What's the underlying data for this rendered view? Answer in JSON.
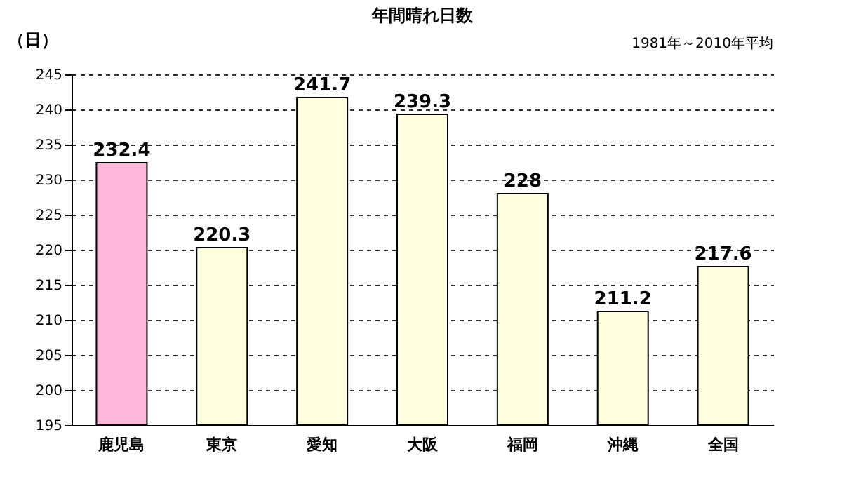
{
  "chart_data": {
    "type": "bar",
    "title": "年間晴れ日数",
    "ylabel": "（日）",
    "annotations": [
      "1981年～2010年平均"
    ],
    "categories": [
      "鹿児島",
      "東京",
      "愛知",
      "大阪",
      "福岡",
      "沖縄",
      "全国"
    ],
    "values": [
      232.4,
      220.3,
      241.7,
      239.3,
      228,
      211.2,
      217.6
    ],
    "colors": [
      "#ffb6d9",
      "#ffffe0",
      "#ffffe0",
      "#ffffe0",
      "#ffffe0",
      "#ffffe0",
      "#ffffe0"
    ],
    "ylim": [
      195,
      245
    ],
    "yticks": [
      195,
      200,
      205,
      210,
      215,
      220,
      225,
      230,
      235,
      240,
      245
    ],
    "grid": "y",
    "data_labels": true
  }
}
